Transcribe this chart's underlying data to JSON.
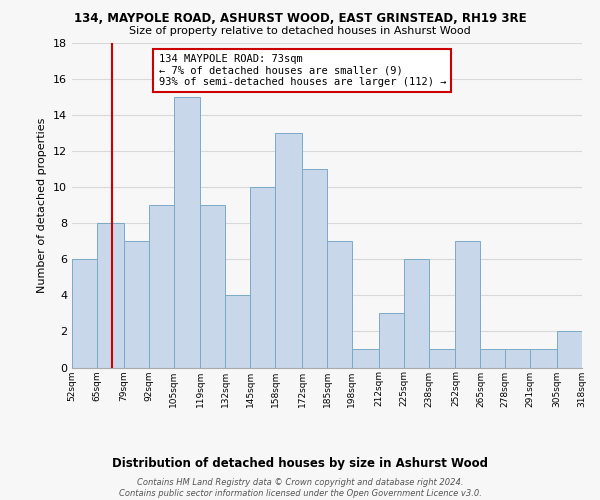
{
  "title": "134, MAYPOLE ROAD, ASHURST WOOD, EAST GRINSTEAD, RH19 3RE",
  "subtitle": "Size of property relative to detached houses in Ashurst Wood",
  "xlabel": "Distribution of detached houses by size in Ashurst Wood",
  "ylabel": "Number of detached properties",
  "bar_edges": [
    52,
    65,
    79,
    92,
    105,
    119,
    132,
    145,
    158,
    172,
    185,
    198,
    212,
    225,
    238,
    252,
    265,
    278,
    291,
    305,
    318
  ],
  "bar_heights": [
    6,
    8,
    7,
    9,
    15,
    9,
    4,
    10,
    13,
    11,
    7,
    1,
    3,
    6,
    1,
    7,
    1,
    1,
    1,
    2
  ],
  "bar_color": "#c8d8ea",
  "bar_edge_color": "#7aaac8",
  "grid_color": "#d8d8d8",
  "vline_x": 73,
  "vline_color": "#cc0000",
  "annotation_line1": "134 MAYPOLE ROAD: 73sqm",
  "annotation_line2": "← 7% of detached houses are smaller (9)",
  "annotation_line3": "93% of semi-detached houses are larger (112) →",
  "annotation_box_color": "#ffffff",
  "annotation_box_edge": "#cc0000",
  "ylim": [
    0,
    18
  ],
  "yticks": [
    0,
    2,
    4,
    6,
    8,
    10,
    12,
    14,
    16,
    18
  ],
  "tick_labels": [
    "52sqm",
    "65sqm",
    "79sqm",
    "92sqm",
    "105sqm",
    "119sqm",
    "132sqm",
    "145sqm",
    "158sqm",
    "172sqm",
    "185sqm",
    "198sqm",
    "212sqm",
    "225sqm",
    "238sqm",
    "252sqm",
    "265sqm",
    "278sqm",
    "291sqm",
    "305sqm",
    "318sqm"
  ],
  "footnote": "Contains HM Land Registry data © Crown copyright and database right 2024.\nContains public sector information licensed under the Open Government Licence v3.0.",
  "bg_color": "#f7f7f7"
}
